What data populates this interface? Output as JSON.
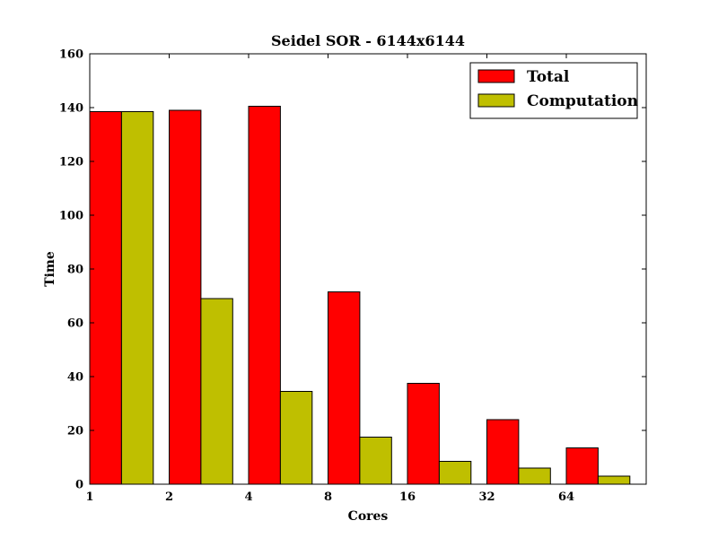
{
  "chart_data": {
    "type": "bar",
    "title": "Seidel SOR - 6144x6144",
    "xlabel": "Cores",
    "ylabel": "Time",
    "categories": [
      "1",
      "2",
      "4",
      "8",
      "16",
      "32",
      "64"
    ],
    "series": [
      {
        "name": "Total",
        "color": "#ff0000",
        "values": [
          138.5,
          139,
          140.5,
          71.5,
          37.5,
          24,
          13.5
        ]
      },
      {
        "name": "Computation",
        "color": "#bfbf00",
        "values": [
          138.5,
          69,
          34.5,
          17.5,
          8.5,
          6,
          3
        ]
      }
    ],
    "ylim": [
      0,
      160
    ],
    "yticks": [
      0,
      20,
      40,
      60,
      80,
      100,
      120,
      140,
      160
    ],
    "grid": false,
    "legend_position": "top-right"
  }
}
